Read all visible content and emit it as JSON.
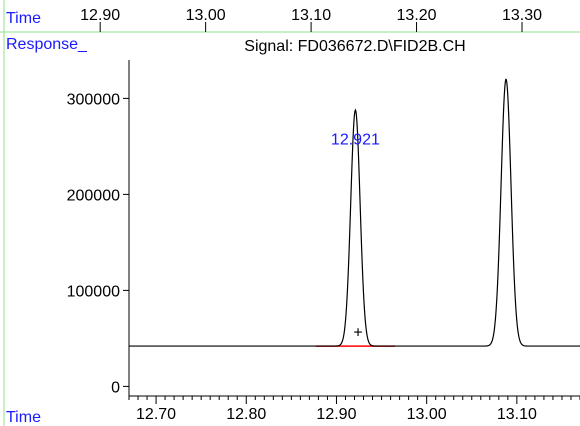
{
  "chart_data": {
    "type": "line",
    "title": "Signal: FD036672.D\\FID2B.CH",
    "ylabel": "Response_",
    "xlabel": "Time",
    "top_axis_label": "Time",
    "top_ticks": [
      "12.90",
      "13.00",
      "13.10",
      "13.20",
      "13.30"
    ],
    "top_tick_values": [
      12.9,
      13.0,
      13.1,
      13.2,
      13.3
    ],
    "x_ticks": [
      "12.70",
      "12.80",
      "12.90",
      "13.00",
      "13.10"
    ],
    "x_tick_values": [
      12.7,
      12.8,
      12.9,
      13.0,
      13.1
    ],
    "y_ticks": [
      "0",
      "100000",
      "200000",
      "300000"
    ],
    "y_tick_values": [
      0,
      100000,
      200000,
      300000
    ],
    "xlim": [
      12.67,
      13.17
    ],
    "ylim": [
      -10000,
      340000
    ],
    "top_xlim": [
      12.805,
      13.355
    ],
    "baseline": 42000,
    "series": [
      {
        "peaks": [
          {
            "rt": 12.921,
            "height": 246000,
            "sigma": 0.0052
          },
          {
            "rt": 13.088,
            "height": 278000,
            "sigma": 0.0055
          }
        ]
      }
    ],
    "annotations": [
      {
        "text": "12.921",
        "x": 12.921,
        "y": 252000,
        "color": "#1a1aff"
      },
      {
        "text": "+",
        "x": 12.924,
        "y": 51000,
        "color": "#000000"
      }
    ],
    "integration_baseline": {
      "x_start": 12.877,
      "x_end": 12.965,
      "y": 42000,
      "color": "#ff0000"
    },
    "colors": {
      "trace": "#000000",
      "axes_label": "#1a1aff",
      "frame": "#8fe08f",
      "integration": "#ff0000"
    }
  }
}
